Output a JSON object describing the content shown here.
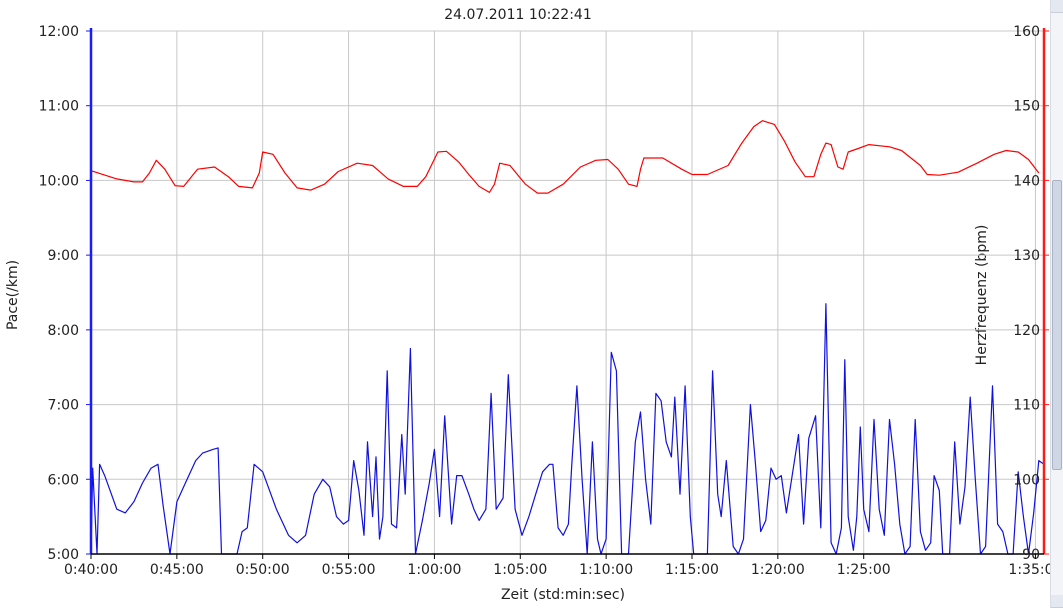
{
  "chart_data": {
    "type": "line",
    "title": "24.07.2011 10:22:41",
    "xlabel": "Zeit (std:min:sec)",
    "ylabel_left": "Pace(/km)",
    "ylabel_right": "Herzfrequenz (bpm)",
    "x_unit": "minutes",
    "xlim": [
      40,
      95.5
    ],
    "x_ticks": [
      {
        "value": 40,
        "label": "0:40:00"
      },
      {
        "value": 45,
        "label": "0:45:00"
      },
      {
        "value": 50,
        "label": "0:50:00"
      },
      {
        "value": 55,
        "label": "0:55:00"
      },
      {
        "value": 60,
        "label": "1:00:00"
      },
      {
        "value": 65,
        "label": "1:05:00"
      },
      {
        "value": 70,
        "label": "1:10:00"
      },
      {
        "value": 75,
        "label": "1:15:00"
      },
      {
        "value": 80,
        "label": "1:20:00"
      },
      {
        "value": 85,
        "label": "1:25:00"
      },
      {
        "value": 95,
        "label": "1:35:00"
      }
    ],
    "left_axis": {
      "unit": "minutes per km",
      "ylim": [
        5,
        12
      ],
      "ticks": [
        {
          "value": 5,
          "label": "5:00"
        },
        {
          "value": 6,
          "label": "6:00"
        },
        {
          "value": 7,
          "label": "7:00"
        },
        {
          "value": 8,
          "label": "8:00"
        },
        {
          "value": 9,
          "label": "9:00"
        },
        {
          "value": 10,
          "label": "10:00"
        },
        {
          "value": 11,
          "label": "11:00"
        },
        {
          "value": 12,
          "label": "12:00"
        }
      ]
    },
    "right_axis": {
      "ylim": [
        90,
        160
      ],
      "ticks": [
        {
          "value": 90,
          "label": "90"
        },
        {
          "value": 100,
          "label": "100"
        },
        {
          "value": 110,
          "label": "110"
        },
        {
          "value": 120,
          "label": "120"
        },
        {
          "value": 130,
          "label": "130"
        },
        {
          "value": 140,
          "label": "140"
        },
        {
          "value": 150,
          "label": "150"
        },
        {
          "value": 160,
          "label": "160"
        }
      ]
    },
    "grid": true,
    "series": [
      {
        "axis": "right",
        "color": "#ff0000",
        "points": [
          [
            40,
            141.3
          ],
          [
            41.5,
            140.2
          ],
          [
            42.5,
            139.8
          ],
          [
            43,
            139.8
          ],
          [
            43.4,
            141
          ],
          [
            43.8,
            142.7
          ],
          [
            44.3,
            141.5
          ],
          [
            44.9,
            139.3
          ],
          [
            45.4,
            139.2
          ],
          [
            46.2,
            141.5
          ],
          [
            47.2,
            141.8
          ],
          [
            48,
            140.5
          ],
          [
            48.6,
            139.2
          ],
          [
            49.4,
            139
          ],
          [
            49.8,
            141
          ],
          [
            50,
            143.8
          ],
          [
            50.6,
            143.5
          ],
          [
            51.3,
            141
          ],
          [
            52,
            139
          ],
          [
            52.8,
            138.7
          ],
          [
            53.6,
            139.5
          ],
          [
            54.4,
            141.2
          ],
          [
            55.5,
            142.3
          ],
          [
            56.4,
            142
          ],
          [
            57.3,
            140.2
          ],
          [
            58.2,
            139.2
          ],
          [
            59,
            139.2
          ],
          [
            59.5,
            140.5
          ],
          [
            60.2,
            143.8
          ],
          [
            60.7,
            143.9
          ],
          [
            61.4,
            142.5
          ],
          [
            62,
            140.8
          ],
          [
            62.6,
            139.2
          ],
          [
            63.2,
            138.4
          ],
          [
            63.5,
            139.5
          ],
          [
            63.8,
            142.3
          ],
          [
            64.4,
            142
          ],
          [
            65.3,
            139.5
          ],
          [
            66,
            138.3
          ],
          [
            66.6,
            138.3
          ],
          [
            67.5,
            139.5
          ],
          [
            68.5,
            141.8
          ],
          [
            69.4,
            142.7
          ],
          [
            70.1,
            142.8
          ],
          [
            70.7,
            141.5
          ],
          [
            71.3,
            139.5
          ],
          [
            71.8,
            139.2
          ],
          [
            72,
            141.5
          ],
          [
            72.2,
            143
          ],
          [
            73.3,
            143
          ],
          [
            74.4,
            141.5
          ],
          [
            75,
            140.8
          ],
          [
            75.9,
            140.8
          ],
          [
            77.1,
            142
          ],
          [
            77.9,
            145
          ],
          [
            78.6,
            147.2
          ],
          [
            79.1,
            148
          ],
          [
            79.8,
            147.5
          ],
          [
            80.4,
            145.2
          ],
          [
            81,
            142.5
          ],
          [
            81.6,
            140.5
          ],
          [
            82.1,
            140.5
          ],
          [
            82.5,
            143.5
          ],
          [
            82.8,
            145
          ],
          [
            83.1,
            144.8
          ],
          [
            83.5,
            141.8
          ],
          [
            83.8,
            141.5
          ],
          [
            84.1,
            143.8
          ],
          [
            84.6,
            144.2
          ],
          [
            85.3,
            144.8
          ],
          [
            86.5,
            144.5
          ],
          [
            87.2,
            144
          ],
          [
            88.3,
            142
          ],
          [
            88.7,
            140.8
          ],
          [
            89.4,
            140.7
          ],
          [
            90.5,
            141.1
          ],
          [
            91.6,
            142.3
          ],
          [
            92.6,
            143.5
          ],
          [
            93.3,
            144
          ],
          [
            94,
            143.8
          ],
          [
            94.6,
            142.8
          ],
          [
            95.2,
            141
          ]
        ]
      },
      {
        "axis": "left",
        "color": "#1010e0",
        "points": [
          [
            40,
            5.0
          ],
          [
            40.1,
            6.15
          ],
          [
            40.35,
            5.0
          ],
          [
            40.5,
            6.2
          ],
          [
            40.8,
            6.05
          ],
          [
            41.5,
            5.6
          ],
          [
            42,
            5.55
          ],
          [
            42.5,
            5.7
          ],
          [
            43,
            5.95
          ],
          [
            43.5,
            6.15
          ],
          [
            43.9,
            6.2
          ],
          [
            44.2,
            5.65
          ],
          [
            44.6,
            5.0
          ],
          [
            45,
            5.7
          ],
          [
            45.5,
            5.95
          ],
          [
            46.1,
            6.25
          ],
          [
            46.5,
            6.35
          ],
          [
            47.1,
            6.4
          ],
          [
            47.4,
            6.42
          ],
          [
            47.6,
            5.0
          ],
          [
            48.5,
            5.0
          ],
          [
            48.8,
            5.3
          ],
          [
            49.1,
            5.35
          ],
          [
            49.5,
            6.2
          ],
          [
            50,
            6.1
          ],
          [
            50.8,
            5.6
          ],
          [
            51.5,
            5.25
          ],
          [
            52,
            5.15
          ],
          [
            52.5,
            5.25
          ],
          [
            53,
            5.8
          ],
          [
            53.5,
            6.0
          ],
          [
            53.9,
            5.9
          ],
          [
            54.3,
            5.5
          ],
          [
            54.7,
            5.4
          ],
          [
            55,
            5.45
          ],
          [
            55.3,
            6.25
          ],
          [
            55.6,
            5.85
          ],
          [
            55.9,
            5.25
          ],
          [
            56.1,
            6.5
          ],
          [
            56.4,
            5.5
          ],
          [
            56.6,
            6.3
          ],
          [
            56.8,
            5.2
          ],
          [
            57,
            5.5
          ],
          [
            57.25,
            7.45
          ],
          [
            57.5,
            5.4
          ],
          [
            57.8,
            5.35
          ],
          [
            58.1,
            6.6
          ],
          [
            58.3,
            5.8
          ],
          [
            58.6,
            7.75
          ],
          [
            58.9,
            5.0
          ],
          [
            59.3,
            5.45
          ],
          [
            59.7,
            5.95
          ],
          [
            60,
            6.4
          ],
          [
            60.3,
            5.5
          ],
          [
            60.6,
            6.85
          ],
          [
            61,
            5.4
          ],
          [
            61.3,
            6.05
          ],
          [
            61.6,
            6.05
          ],
          [
            62,
            5.8
          ],
          [
            62.3,
            5.6
          ],
          [
            62.6,
            5.45
          ],
          [
            63,
            5.6
          ],
          [
            63.3,
            7.15
          ],
          [
            63.6,
            5.6
          ],
          [
            64,
            5.75
          ],
          [
            64.3,
            7.4
          ],
          [
            64.7,
            5.6
          ],
          [
            65.1,
            5.25
          ],
          [
            65.5,
            5.5
          ],
          [
            65.9,
            5.8
          ],
          [
            66.3,
            6.1
          ],
          [
            66.7,
            6.2
          ],
          [
            66.9,
            6.2
          ],
          [
            67.2,
            5.35
          ],
          [
            67.5,
            5.25
          ],
          [
            67.8,
            5.4
          ],
          [
            68,
            6.2
          ],
          [
            68.3,
            7.25
          ],
          [
            68.6,
            6.0
          ],
          [
            68.9,
            5.0
          ],
          [
            69.2,
            6.5
          ],
          [
            69.5,
            5.2
          ],
          [
            69.7,
            5.0
          ],
          [
            70,
            5.2
          ],
          [
            70.3,
            7.7
          ],
          [
            70.6,
            7.45
          ],
          [
            70.9,
            5.0
          ],
          [
            71.3,
            5.0
          ],
          [
            71.7,
            6.5
          ],
          [
            72,
            6.9
          ],
          [
            72.3,
            6.0
          ],
          [
            72.6,
            5.4
          ],
          [
            72.9,
            7.15
          ],
          [
            73.2,
            7.05
          ],
          [
            73.5,
            6.5
          ],
          [
            73.8,
            6.3
          ],
          [
            74,
            7.1
          ],
          [
            74.3,
            5.8
          ],
          [
            74.6,
            7.25
          ],
          [
            74.9,
            5.5
          ],
          [
            75.1,
            5.0
          ],
          [
            75.5,
            5.0
          ],
          [
            75.9,
            5.0
          ],
          [
            76.2,
            7.45
          ],
          [
            76.5,
            5.8
          ],
          [
            76.7,
            5.5
          ],
          [
            77,
            6.25
          ],
          [
            77.4,
            5.1
          ],
          [
            77.7,
            5.0
          ],
          [
            78,
            5.2
          ],
          [
            78.4,
            7.0
          ],
          [
            78.7,
            6.2
          ],
          [
            79,
            5.3
          ],
          [
            79.3,
            5.45
          ],
          [
            79.6,
            6.15
          ],
          [
            79.9,
            6.0
          ],
          [
            80.2,
            6.05
          ],
          [
            80.5,
            5.55
          ],
          [
            80.8,
            6.0
          ],
          [
            81.2,
            6.6
          ],
          [
            81.5,
            5.4
          ],
          [
            81.8,
            6.55
          ],
          [
            82.2,
            6.85
          ],
          [
            82.5,
            5.35
          ],
          [
            82.8,
            8.35
          ],
          [
            83.1,
            5.15
          ],
          [
            83.4,
            5.0
          ],
          [
            83.7,
            5.35
          ],
          [
            83.9,
            7.6
          ],
          [
            84.1,
            5.5
          ],
          [
            84.4,
            5.05
          ],
          [
            84.6,
            5.5
          ],
          [
            84.8,
            6.7
          ],
          [
            85,
            5.6
          ],
          [
            85.3,
            5.3
          ],
          [
            85.6,
            6.8
          ],
          [
            85.9,
            5.6
          ],
          [
            86.2,
            5.25
          ],
          [
            86.5,
            6.8
          ],
          [
            86.8,
            6.2
          ],
          [
            87.1,
            5.4
          ],
          [
            87.4,
            5.0
          ],
          [
            87.7,
            5.1
          ],
          [
            88,
            6.8
          ],
          [
            88.3,
            5.3
          ],
          [
            88.6,
            5.05
          ],
          [
            88.9,
            5.15
          ],
          [
            89.1,
            6.05
          ],
          [
            89.4,
            5.85
          ],
          [
            89.6,
            5.0
          ],
          [
            90,
            5.0
          ],
          [
            90.3,
            6.5
          ],
          [
            90.6,
            5.4
          ],
          [
            90.9,
            5.9
          ],
          [
            91.2,
            7.1
          ],
          [
            91.5,
            6.0
          ],
          [
            91.8,
            5.0
          ],
          [
            92.1,
            5.1
          ],
          [
            92.5,
            7.25
          ],
          [
            92.8,
            5.4
          ],
          [
            93.1,
            5.3
          ],
          [
            93.4,
            5.0
          ],
          [
            93.7,
            5.0
          ],
          [
            94,
            6.1
          ],
          [
            94.3,
            5.5
          ],
          [
            94.6,
            5.0
          ],
          [
            94.9,
            5.55
          ],
          [
            95.2,
            6.25
          ],
          [
            95.5,
            6.2
          ]
        ]
      }
    ]
  }
}
